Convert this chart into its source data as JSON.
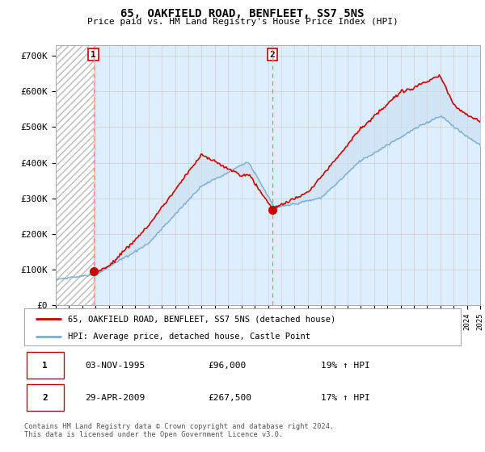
{
  "title": "65, OAKFIELD ROAD, BENFLEET, SS7 5NS",
  "subtitle": "Price paid vs. HM Land Registry's House Price Index (HPI)",
  "ylabel_values": [
    "£0",
    "£100K",
    "£200K",
    "£300K",
    "£400K",
    "£500K",
    "£600K",
    "£700K"
  ],
  "yticks": [
    0,
    100000,
    200000,
    300000,
    400000,
    500000,
    600000,
    700000
  ],
  "ylim": [
    0,
    730000
  ],
  "xstart_year": 1993,
  "xend_year": 2025,
  "sale1_date": 1995.84,
  "sale1_price": 96000,
  "sale2_date": 2009.33,
  "sale2_price": 267500,
  "line1_color": "#cc0000",
  "line2_color": "#7aadcf",
  "fill_color": "#cce0f0",
  "hatch_color": "#bbbbbb",
  "grid_color": "#cccccc",
  "plot_bg_color": "#ddeeff",
  "legend_line1": "65, OAKFIELD ROAD, BENFLEET, SS7 5NS (detached house)",
  "legend_line2": "HPI: Average price, detached house, Castle Point",
  "table_row1": [
    "1",
    "03-NOV-1995",
    "£96,000",
    "19% ↑ HPI"
  ],
  "table_row2": [
    "2",
    "29-APR-2009",
    "£267,500",
    "17% ↑ HPI"
  ],
  "footer": "Contains HM Land Registry data © Crown copyright and database right 2024.\nThis data is licensed under the Open Government Licence v3.0.",
  "bg_color": "#ffffff"
}
